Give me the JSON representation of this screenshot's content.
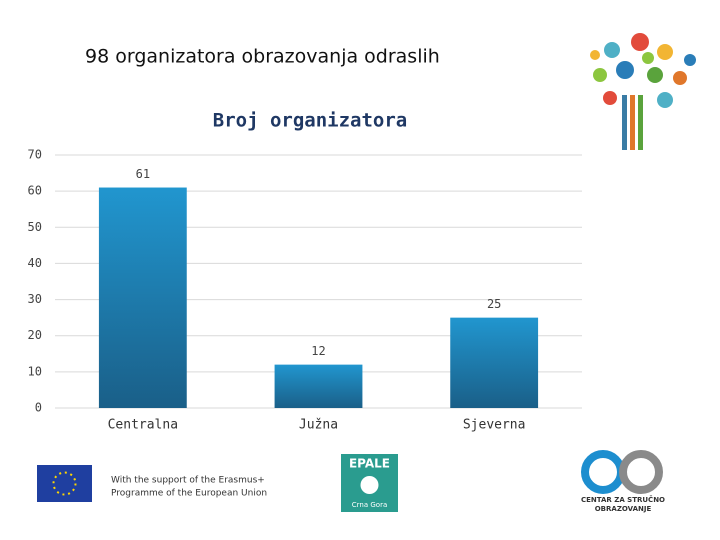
{
  "slide_title": "98 organizatora obrazovanja odraslih",
  "chart_data": {
    "type": "bar",
    "title": "Broj organizatora",
    "categories": [
      "Centralna",
      "Južna",
      "Sjeverna"
    ],
    "values": [
      61,
      12,
      25
    ],
    "color": "#1e87bd",
    "ylim": [
      0,
      70
    ],
    "yticks": [
      0,
      10,
      20,
      30,
      40,
      50,
      60,
      70
    ],
    "grid": true
  },
  "footer": {
    "eu_text_1": "With the support of the Erasmus+",
    "eu_text_2": "Programme of the European Union",
    "epale": "EPALE",
    "epale_sub": "Crna Gora",
    "cso_1": "CENTAR ZA STRUČNO",
    "cso_2": "OBRAZOVANJE"
  }
}
